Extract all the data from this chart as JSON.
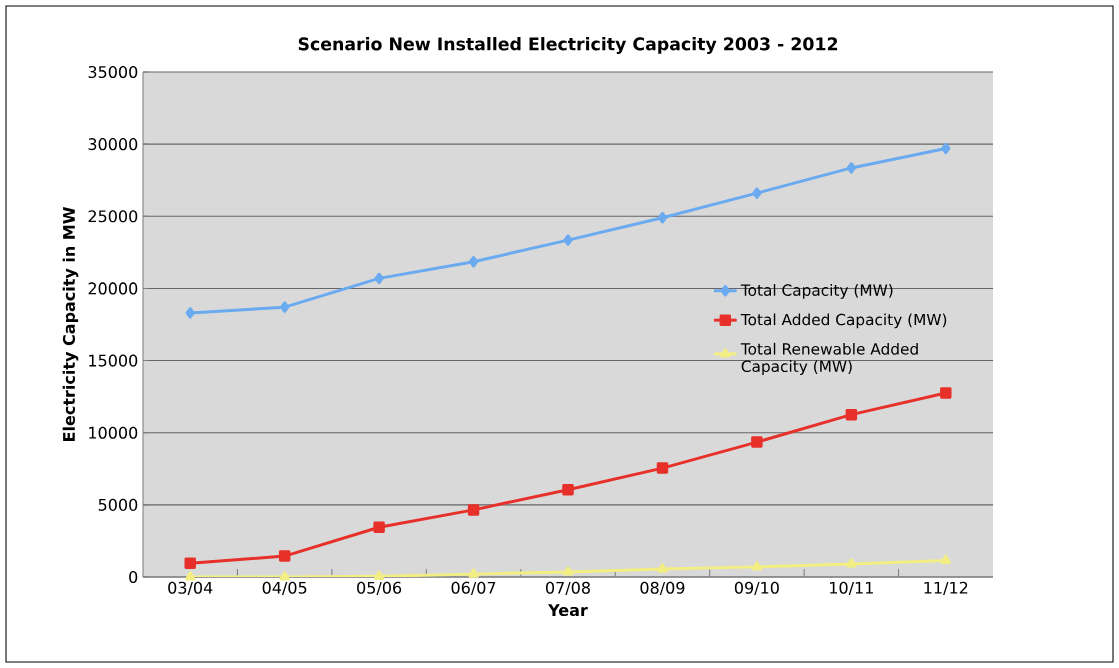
{
  "chart_data": {
    "type": "line",
    "title": "Scenario New Installed Electricity Capacity 2003 - 2012",
    "xlabel": "Year",
    "ylabel": "Electricity Capacity in MW",
    "categories": [
      "03/04",
      "04/05",
      "05/06",
      "06/07",
      "07/08",
      "08/09",
      "09/10",
      "10/11",
      "11/12"
    ],
    "series": [
      {
        "name": "Total Capacity (MW)",
        "color": "#6aaaf0",
        "marker": "diamond",
        "values": [
          18300,
          18700,
          20700,
          21850,
          23350,
          24900,
          26600,
          28350,
          29700
        ]
      },
      {
        "name": "Total Added Capacity (MW)",
        "color": "#e8302a",
        "marker": "square",
        "values": [
          950,
          1450,
          3450,
          4650,
          6050,
          7550,
          9350,
          11250,
          12750
        ]
      },
      {
        "name": "Total Renewable Added Capacity (MW)",
        "color": "#f2ee84",
        "marker": "triangle",
        "values": [
          0,
          0,
          50,
          200,
          350,
          550,
          700,
          900,
          1150
        ]
      }
    ],
    "ylim": [
      0,
      35000
    ],
    "yticks": [
      0,
      5000,
      10000,
      15000,
      20000,
      25000,
      30000,
      35000
    ],
    "grid": "y",
    "legend": "right"
  }
}
